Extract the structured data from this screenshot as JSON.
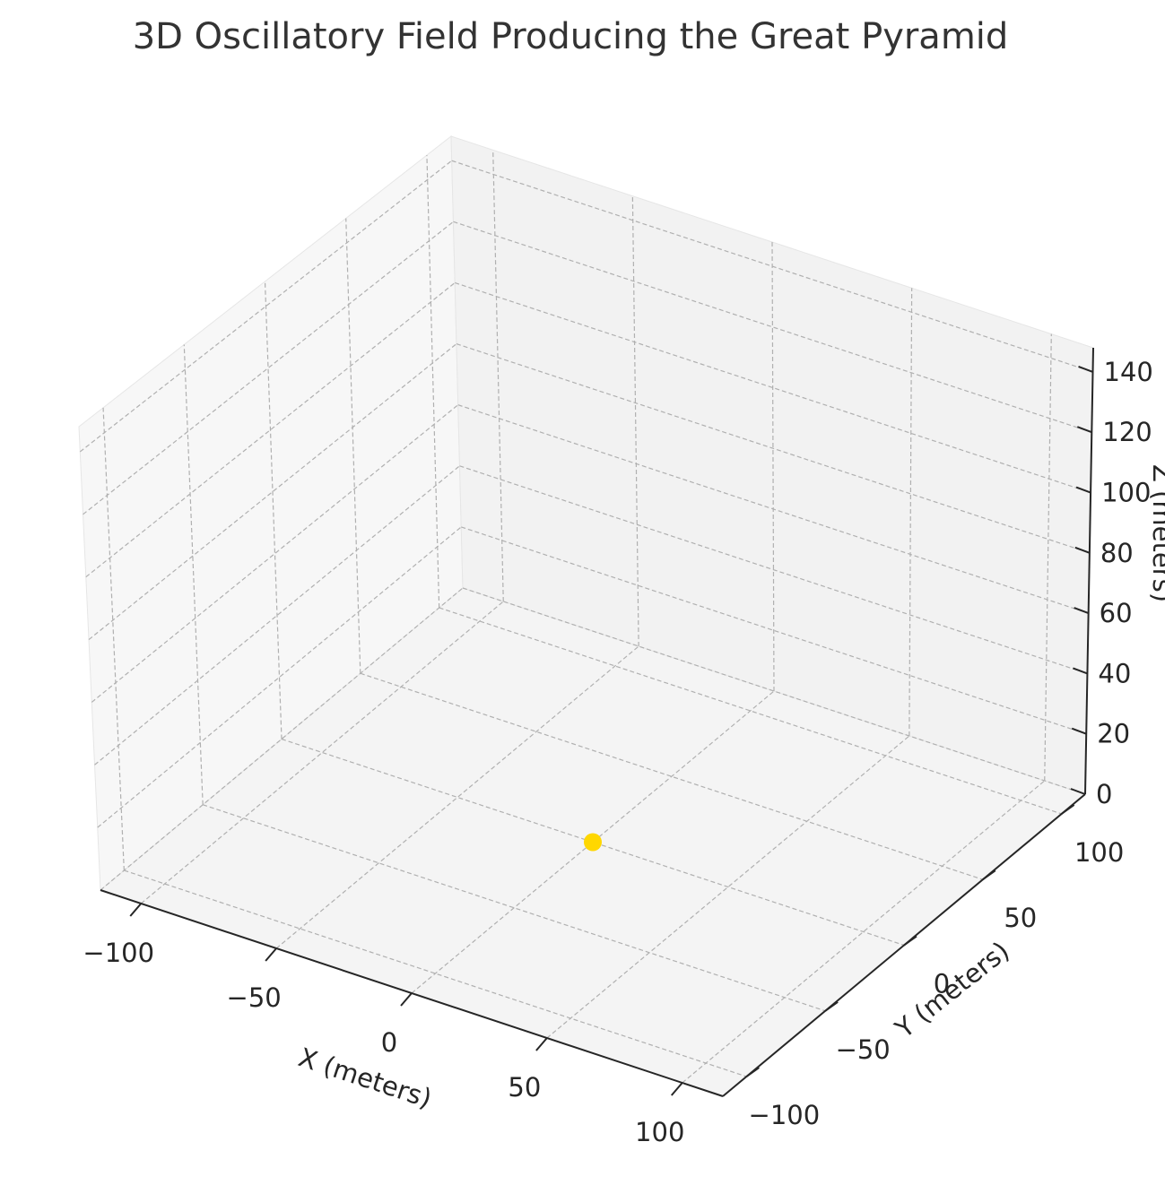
{
  "chart_data": {
    "type": "scatter",
    "title": "3D Oscillatory Field Producing the Great Pyramid",
    "xlabel": "X (meters)",
    "ylabel": "Y (meters)",
    "zlabel": "Z (meters)",
    "xlim": [
      -115,
      115
    ],
    "ylim": [
      -115,
      115
    ],
    "zlim": [
      0,
      148
    ],
    "x_ticks": [
      -100,
      -50,
      0,
      50,
      100
    ],
    "y_ticks": [
      -100,
      -50,
      0,
      50,
      100
    ],
    "z_ticks": [
      0,
      20,
      40,
      60,
      80,
      100,
      120,
      140
    ],
    "x_tick_labels": [
      "−100",
      "−50",
      "0",
      "50",
      "100"
    ],
    "y_tick_labels": [
      "−100",
      "−50",
      "0",
      "50",
      "100"
    ],
    "z_tick_labels": [
      "0",
      "20",
      "40",
      "60",
      "80",
      "100",
      "120",
      "140"
    ],
    "grid": true,
    "pane_color": "#f2f2f2",
    "series": [
      {
        "color": "#ffd700",
        "points": [
          {
            "x": 0,
            "y": 0,
            "z": 0
          }
        ]
      }
    ]
  }
}
